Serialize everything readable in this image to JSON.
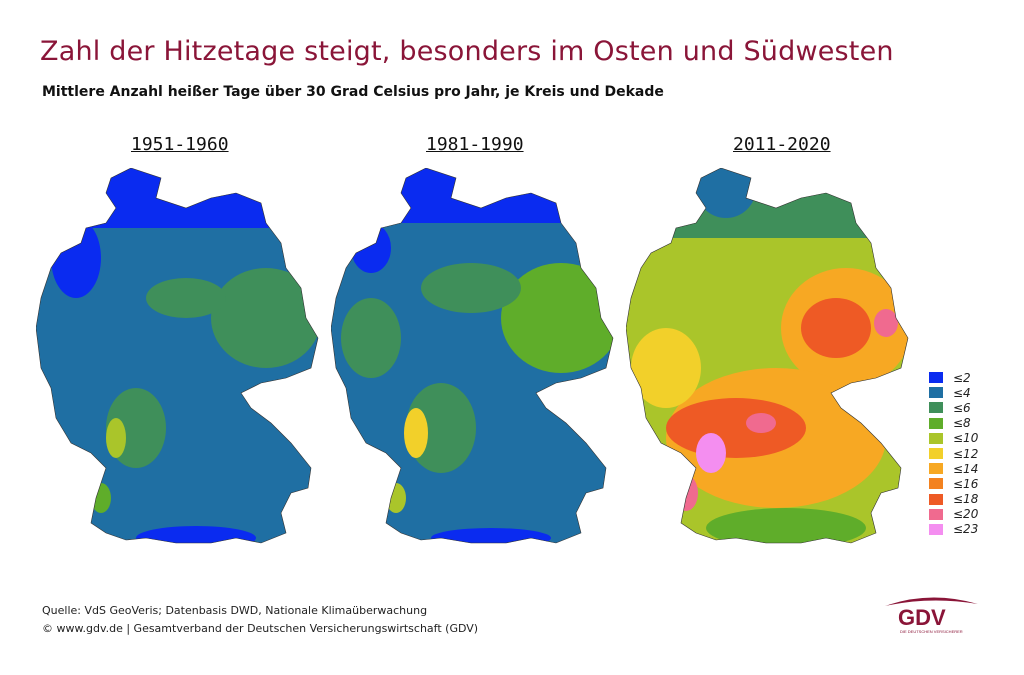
{
  "title": "Zahl der Hitzetage steigt, besonders im Osten und Südwesten",
  "subtitle": "Mittlere Anzahl heißer Tage über 30 Grad Celsius pro Jahr, je Kreis und Dekade",
  "maps": [
    {
      "label": "1951-1960"
    },
    {
      "label": "1981-1990"
    },
    {
      "label": "2011-2020"
    }
  ],
  "legend": [
    {
      "label": "≤2",
      "color": "#0a2bf0"
    },
    {
      "label": "≤4",
      "color": "#1f6fa3"
    },
    {
      "label": "≤6",
      "color": "#3f8f5a"
    },
    {
      "label": "≤8",
      "color": "#5fad2a"
    },
    {
      "label": "≤10",
      "color": "#aac52a"
    },
    {
      "label": "≤12",
      "color": "#f2d02a"
    },
    {
      "label": "≤14",
      "color": "#f7a823"
    },
    {
      "label": "≤16",
      "color": "#f3821f"
    },
    {
      "label": "≤18",
      "color": "#ee5a25"
    },
    {
      "label": "≤20",
      "color": "#f06a8f"
    },
    {
      "label": "≤23",
      "color": "#f48ef0"
    }
  ],
  "footer": {
    "source": "Quelle: VdS GeoVeris; Datenbasis DWD, Nationale Klimaüberwachung",
    "copyright": "© www.gdv.de | Gesamtverband der Deutschen Versicherungswirtschaft (GDV)"
  },
  "logo": {
    "text": "GDV",
    "tagline": "DIE DEUTSCHEN VERSICHERER"
  }
}
